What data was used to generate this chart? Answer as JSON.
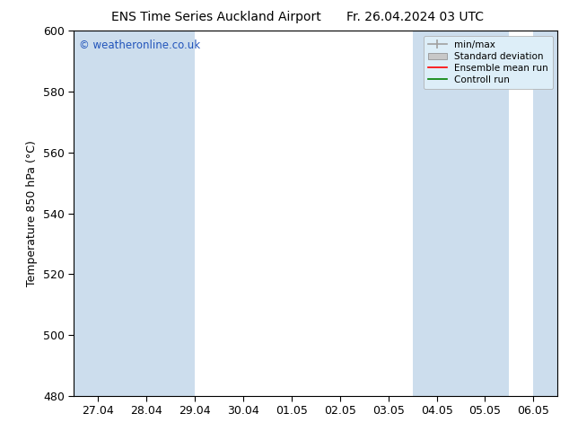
{
  "title_left": "ENS Time Series Auckland Airport",
  "title_right": "Fr. 26.04.2024 03 UTC",
  "ylabel": "Temperature 850 hPa (°C)",
  "ylim": [
    480,
    600
  ],
  "yticks": [
    480,
    500,
    520,
    540,
    560,
    580,
    600
  ],
  "xtick_labels": [
    "27.04",
    "28.04",
    "29.04",
    "30.04",
    "01.05",
    "02.05",
    "03.05",
    "04.05",
    "05.05",
    "06.05"
  ],
  "xtick_positions": [
    0,
    1,
    2,
    3,
    4,
    5,
    6,
    7,
    8,
    9
  ],
  "xlim": [
    -0.5,
    9.5
  ],
  "shaded_bands": [
    {
      "x_start": -0.5,
      "x_end": 2.0,
      "color": "#ccdded"
    },
    {
      "x_start": 6.5,
      "x_end": 7.5,
      "color": "#ccdded"
    },
    {
      "x_start": 7.5,
      "x_end": 8.5,
      "color": "#ccdded"
    },
    {
      "x_start": 9.0,
      "x_end": 9.5,
      "color": "#ccdded"
    }
  ],
  "legend_labels": [
    "min/max",
    "Standard deviation",
    "Ensemble mean run",
    "Controll run"
  ],
  "legend_line_color": "#a0a0a0",
  "legend_patch_color": "#c8c8c8",
  "watermark": "© weatheronline.co.uk",
  "watermark_color": "#2255bb",
  "background_color": "#ffffff",
  "title_fontsize": 10,
  "axis_label_fontsize": 9,
  "tick_fontsize": 9,
  "legend_bg": "#ddeef8"
}
